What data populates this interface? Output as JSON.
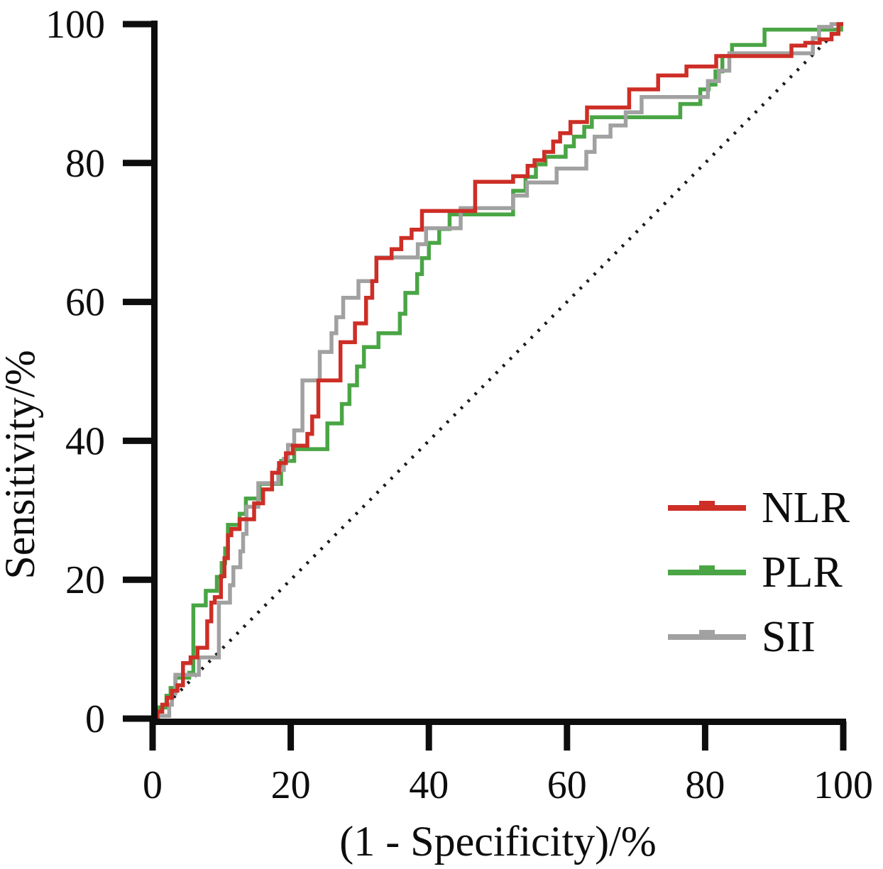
{
  "chart_data": {
    "type": "line",
    "subtype": "roc-step-curves",
    "title": "",
    "xlabel": "(1 - Specificity)/%",
    "ylabel": "Sensitivity/%",
    "xlim": [
      0,
      100
    ],
    "ylim": [
      0,
      100
    ],
    "xticks": [
      0,
      20,
      40,
      60,
      80,
      100
    ],
    "yticks": [
      0,
      20,
      40,
      60,
      80,
      100
    ],
    "grid": false,
    "legend_position": "lower-right",
    "axis_color": "#0d0d0d",
    "reference_line": {
      "label": "chance-diagonal",
      "from": [
        0,
        0
      ],
      "to": [
        100,
        100
      ],
      "style": "dashed",
      "color": "#1a1a1a"
    },
    "series": [
      {
        "name": "PLR",
        "color": "#4aa545",
        "points": [
          [
            0,
            0
          ],
          [
            0.8,
            0
          ],
          [
            0.8,
            1.6
          ],
          [
            2,
            1.6
          ],
          [
            2,
            3.3
          ],
          [
            2.6,
            3.3
          ],
          [
            2.6,
            4.4
          ],
          [
            3.3,
            4.4
          ],
          [
            3.3,
            5.9
          ],
          [
            5.3,
            5.9
          ],
          [
            5.3,
            6.6
          ],
          [
            5.9,
            6.6
          ],
          [
            5.9,
            16.3
          ],
          [
            7.7,
            16.3
          ],
          [
            7.7,
            18.4
          ],
          [
            9.3,
            18.4
          ],
          [
            9.3,
            20.4
          ],
          [
            10,
            20.4
          ],
          [
            10,
            22.4
          ],
          [
            10.5,
            22.4
          ],
          [
            10.5,
            24.5
          ],
          [
            10.9,
            24.5
          ],
          [
            10.9,
            27.9
          ],
          [
            12.6,
            27.9
          ],
          [
            12.6,
            29.5
          ],
          [
            13.5,
            29.5
          ],
          [
            13.5,
            31.7
          ],
          [
            15.5,
            31.7
          ],
          [
            15.5,
            33.8
          ],
          [
            18.6,
            33.8
          ],
          [
            18.6,
            37.1
          ],
          [
            20.5,
            37.1
          ],
          [
            20.5,
            38.8
          ],
          [
            25.3,
            38.8
          ],
          [
            25.3,
            42.5
          ],
          [
            27.4,
            42.5
          ],
          [
            27.4,
            45.3
          ],
          [
            28.5,
            45.3
          ],
          [
            28.5,
            48
          ],
          [
            29.6,
            48
          ],
          [
            29.6,
            50.7
          ],
          [
            30.6,
            50.7
          ],
          [
            30.6,
            53.5
          ],
          [
            32.7,
            53.5
          ],
          [
            32.7,
            55.5
          ],
          [
            35.8,
            55.5
          ],
          [
            35.8,
            58.3
          ],
          [
            36.6,
            58.3
          ],
          [
            36.6,
            61.3
          ],
          [
            38.3,
            61.3
          ],
          [
            38.3,
            64
          ],
          [
            39,
            64
          ],
          [
            39,
            66.3
          ],
          [
            40,
            66.3
          ],
          [
            40,
            68.5
          ],
          [
            41.5,
            68.5
          ],
          [
            41.5,
            70.5
          ],
          [
            43,
            70.5
          ],
          [
            43,
            72.6
          ],
          [
            52.2,
            72.6
          ],
          [
            52.2,
            76
          ],
          [
            54,
            76
          ],
          [
            54,
            78
          ],
          [
            55.5,
            78
          ],
          [
            55.5,
            79.8
          ],
          [
            56.9,
            79.8
          ],
          [
            56.9,
            80.9
          ],
          [
            59.8,
            80.9
          ],
          [
            59.8,
            82.4
          ],
          [
            61,
            82.4
          ],
          [
            61,
            83.8
          ],
          [
            62.5,
            83.8
          ],
          [
            62.5,
            85.2
          ],
          [
            63.6,
            85.2
          ],
          [
            63.6,
            86.6
          ],
          [
            76.4,
            86.6
          ],
          [
            76.4,
            88.5
          ],
          [
            79.3,
            88.5
          ],
          [
            79.3,
            90.6
          ],
          [
            80.5,
            90.6
          ],
          [
            80.5,
            91.3
          ],
          [
            81.5,
            91.3
          ],
          [
            81.5,
            93.2
          ],
          [
            82.5,
            93.2
          ],
          [
            82.5,
            95.4
          ],
          [
            83.9,
            95.4
          ],
          [
            83.9,
            97
          ],
          [
            88.6,
            97
          ],
          [
            88.6,
            99.2
          ],
          [
            99.7,
            99.2
          ],
          [
            99.7,
            100
          ],
          [
            100,
            100
          ]
        ]
      },
      {
        "name": "SII",
        "color": "#a1a1a1",
        "points": [
          [
            0,
            0
          ],
          [
            1.1,
            0.4
          ],
          [
            2.4,
            0.4
          ],
          [
            2.4,
            2
          ],
          [
            2.8,
            2
          ],
          [
            2.8,
            3.6
          ],
          [
            3.3,
            3.6
          ],
          [
            3.3,
            6.3
          ],
          [
            6.7,
            6.3
          ],
          [
            6.7,
            8.8
          ],
          [
            9.6,
            8.8
          ],
          [
            9.6,
            16.7
          ],
          [
            11.2,
            16.7
          ],
          [
            11.2,
            19.2
          ],
          [
            11.7,
            19.2
          ],
          [
            11.7,
            21.8
          ],
          [
            12.7,
            21.8
          ],
          [
            12.7,
            24.1
          ],
          [
            13.1,
            24.1
          ],
          [
            13.1,
            26.6
          ],
          [
            13.6,
            26.6
          ],
          [
            13.6,
            30.5
          ],
          [
            15.3,
            30.5
          ],
          [
            15.3,
            33.9
          ],
          [
            18.2,
            33.9
          ],
          [
            18.2,
            35.8
          ],
          [
            19,
            35.8
          ],
          [
            19,
            37.4
          ],
          [
            19.6,
            37.4
          ],
          [
            19.6,
            39.4
          ],
          [
            20.5,
            39.4
          ],
          [
            20.5,
            41.5
          ],
          [
            21.7,
            41.5
          ],
          [
            21.7,
            48.7
          ],
          [
            24.2,
            48.7
          ],
          [
            24.2,
            52.8
          ],
          [
            25.9,
            52.8
          ],
          [
            25.9,
            55.5
          ],
          [
            26.6,
            55.5
          ],
          [
            26.6,
            57.8
          ],
          [
            27.6,
            57.8
          ],
          [
            27.6,
            60.6
          ],
          [
            29.8,
            60.6
          ],
          [
            29.8,
            63
          ],
          [
            32.4,
            63
          ],
          [
            32.4,
            66.4
          ],
          [
            38.4,
            66.4
          ],
          [
            38.4,
            68.3
          ],
          [
            39.6,
            68.3
          ],
          [
            39.6,
            70.6
          ],
          [
            44.6,
            70.6
          ],
          [
            44.6,
            73.5
          ],
          [
            52.2,
            73.5
          ],
          [
            52.2,
            75.3
          ],
          [
            54.2,
            75.3
          ],
          [
            54.2,
            77.2
          ],
          [
            58.5,
            77.2
          ],
          [
            58.5,
            79.2
          ],
          [
            62.8,
            79.2
          ],
          [
            62.8,
            81.6
          ],
          [
            64,
            81.6
          ],
          [
            64,
            83.8
          ],
          [
            66.3,
            83.8
          ],
          [
            66.3,
            85.4
          ],
          [
            68.5,
            85.4
          ],
          [
            68.5,
            87.3
          ],
          [
            70.8,
            87.3
          ],
          [
            70.8,
            89.5
          ],
          [
            80.4,
            89.5
          ],
          [
            80.4,
            91.8
          ],
          [
            82,
            91.8
          ],
          [
            82,
            93.3
          ],
          [
            83.5,
            93.3
          ],
          [
            83.5,
            95.8
          ],
          [
            95.6,
            95.8
          ],
          [
            95.6,
            98
          ],
          [
            96.5,
            98
          ],
          [
            96.5,
            99.6
          ],
          [
            98.3,
            99.6
          ],
          [
            98.3,
            100
          ],
          [
            100,
            100
          ]
        ]
      },
      {
        "name": "NLR",
        "color": "#cd2e26",
        "points": [
          [
            0,
            0
          ],
          [
            0.7,
            0
          ],
          [
            0.7,
            1
          ],
          [
            1.4,
            1
          ],
          [
            1.4,
            2
          ],
          [
            2.1,
            2
          ],
          [
            2.1,
            3
          ],
          [
            2.8,
            3
          ],
          [
            2.8,
            4
          ],
          [
            3.6,
            4
          ],
          [
            3.6,
            4.8
          ],
          [
            4.4,
            4.8
          ],
          [
            4.4,
            8
          ],
          [
            5.5,
            8
          ],
          [
            5.5,
            8.8
          ],
          [
            6.5,
            8.8
          ],
          [
            6.5,
            10.2
          ],
          [
            7.9,
            10.2
          ],
          [
            7.9,
            14
          ],
          [
            8.5,
            14
          ],
          [
            8.5,
            16.7
          ],
          [
            9,
            16.7
          ],
          [
            9,
            17.5
          ],
          [
            9.9,
            17.5
          ],
          [
            9.9,
            20.5
          ],
          [
            10.4,
            20.5
          ],
          [
            10.4,
            23.1
          ],
          [
            10.9,
            23.1
          ],
          [
            10.9,
            26.4
          ],
          [
            11.4,
            26.4
          ],
          [
            11.4,
            27.3
          ],
          [
            12.6,
            27.3
          ],
          [
            12.6,
            28.7
          ],
          [
            14.7,
            28.7
          ],
          [
            14.7,
            31
          ],
          [
            16,
            31
          ],
          [
            16,
            33
          ],
          [
            17.3,
            33
          ],
          [
            17.3,
            35.4
          ],
          [
            18.3,
            35.4
          ],
          [
            18.3,
            36.8
          ],
          [
            19.3,
            36.8
          ],
          [
            19.3,
            38.2
          ],
          [
            20.3,
            38.2
          ],
          [
            20.3,
            39.3
          ],
          [
            22.4,
            39.3
          ],
          [
            22.4,
            41
          ],
          [
            23.1,
            41
          ],
          [
            23.1,
            43.5
          ],
          [
            24,
            43.5
          ],
          [
            24,
            48.7
          ],
          [
            27.2,
            48.7
          ],
          [
            27.2,
            54.2
          ],
          [
            29.3,
            54.2
          ],
          [
            29.3,
            56.9
          ],
          [
            30.9,
            56.9
          ],
          [
            30.9,
            60.6
          ],
          [
            31.8,
            60.6
          ],
          [
            31.8,
            63
          ],
          [
            32.4,
            63
          ],
          [
            32.4,
            66.3
          ],
          [
            34.6,
            66.3
          ],
          [
            34.6,
            67.6
          ],
          [
            36,
            67.6
          ],
          [
            36,
            69.2
          ],
          [
            37.5,
            69.2
          ],
          [
            37.5,
            70.4
          ],
          [
            39,
            70.4
          ],
          [
            39,
            73.1
          ],
          [
            46.7,
            73.1
          ],
          [
            46.7,
            77.3
          ],
          [
            52.2,
            77.3
          ],
          [
            52.2,
            78.1
          ],
          [
            54.3,
            78.1
          ],
          [
            54.3,
            79.6
          ],
          [
            55.3,
            79.6
          ],
          [
            55.3,
            80.4
          ],
          [
            56.7,
            80.4
          ],
          [
            56.7,
            81.6
          ],
          [
            58,
            81.6
          ],
          [
            58,
            83.1
          ],
          [
            59,
            83.1
          ],
          [
            59,
            84.3
          ],
          [
            60.5,
            84.3
          ],
          [
            60.5,
            85.9
          ],
          [
            62.9,
            85.9
          ],
          [
            62.9,
            88
          ],
          [
            69,
            88
          ],
          [
            69,
            90.6
          ],
          [
            73.2,
            90.6
          ],
          [
            73.2,
            92.6
          ],
          [
            77.3,
            92.6
          ],
          [
            77.3,
            93.9
          ],
          [
            81.6,
            93.9
          ],
          [
            81.6,
            95.4
          ],
          [
            92.5,
            95.4
          ],
          [
            92.5,
            96.9
          ],
          [
            94.5,
            96.9
          ],
          [
            94.5,
            97.3
          ],
          [
            96.6,
            97.3
          ],
          [
            96.6,
            97.8
          ],
          [
            98.3,
            97.8
          ],
          [
            98.3,
            98.6
          ],
          [
            99.3,
            98.6
          ],
          [
            99.3,
            100
          ],
          [
            100,
            100
          ]
        ]
      }
    ]
  },
  "legend": {
    "items": [
      {
        "label": "NLR",
        "color": "#cd2e26"
      },
      {
        "label": "PLR",
        "color": "#4aa545"
      },
      {
        "label": "SII",
        "color": "#a1a1a1"
      }
    ]
  }
}
